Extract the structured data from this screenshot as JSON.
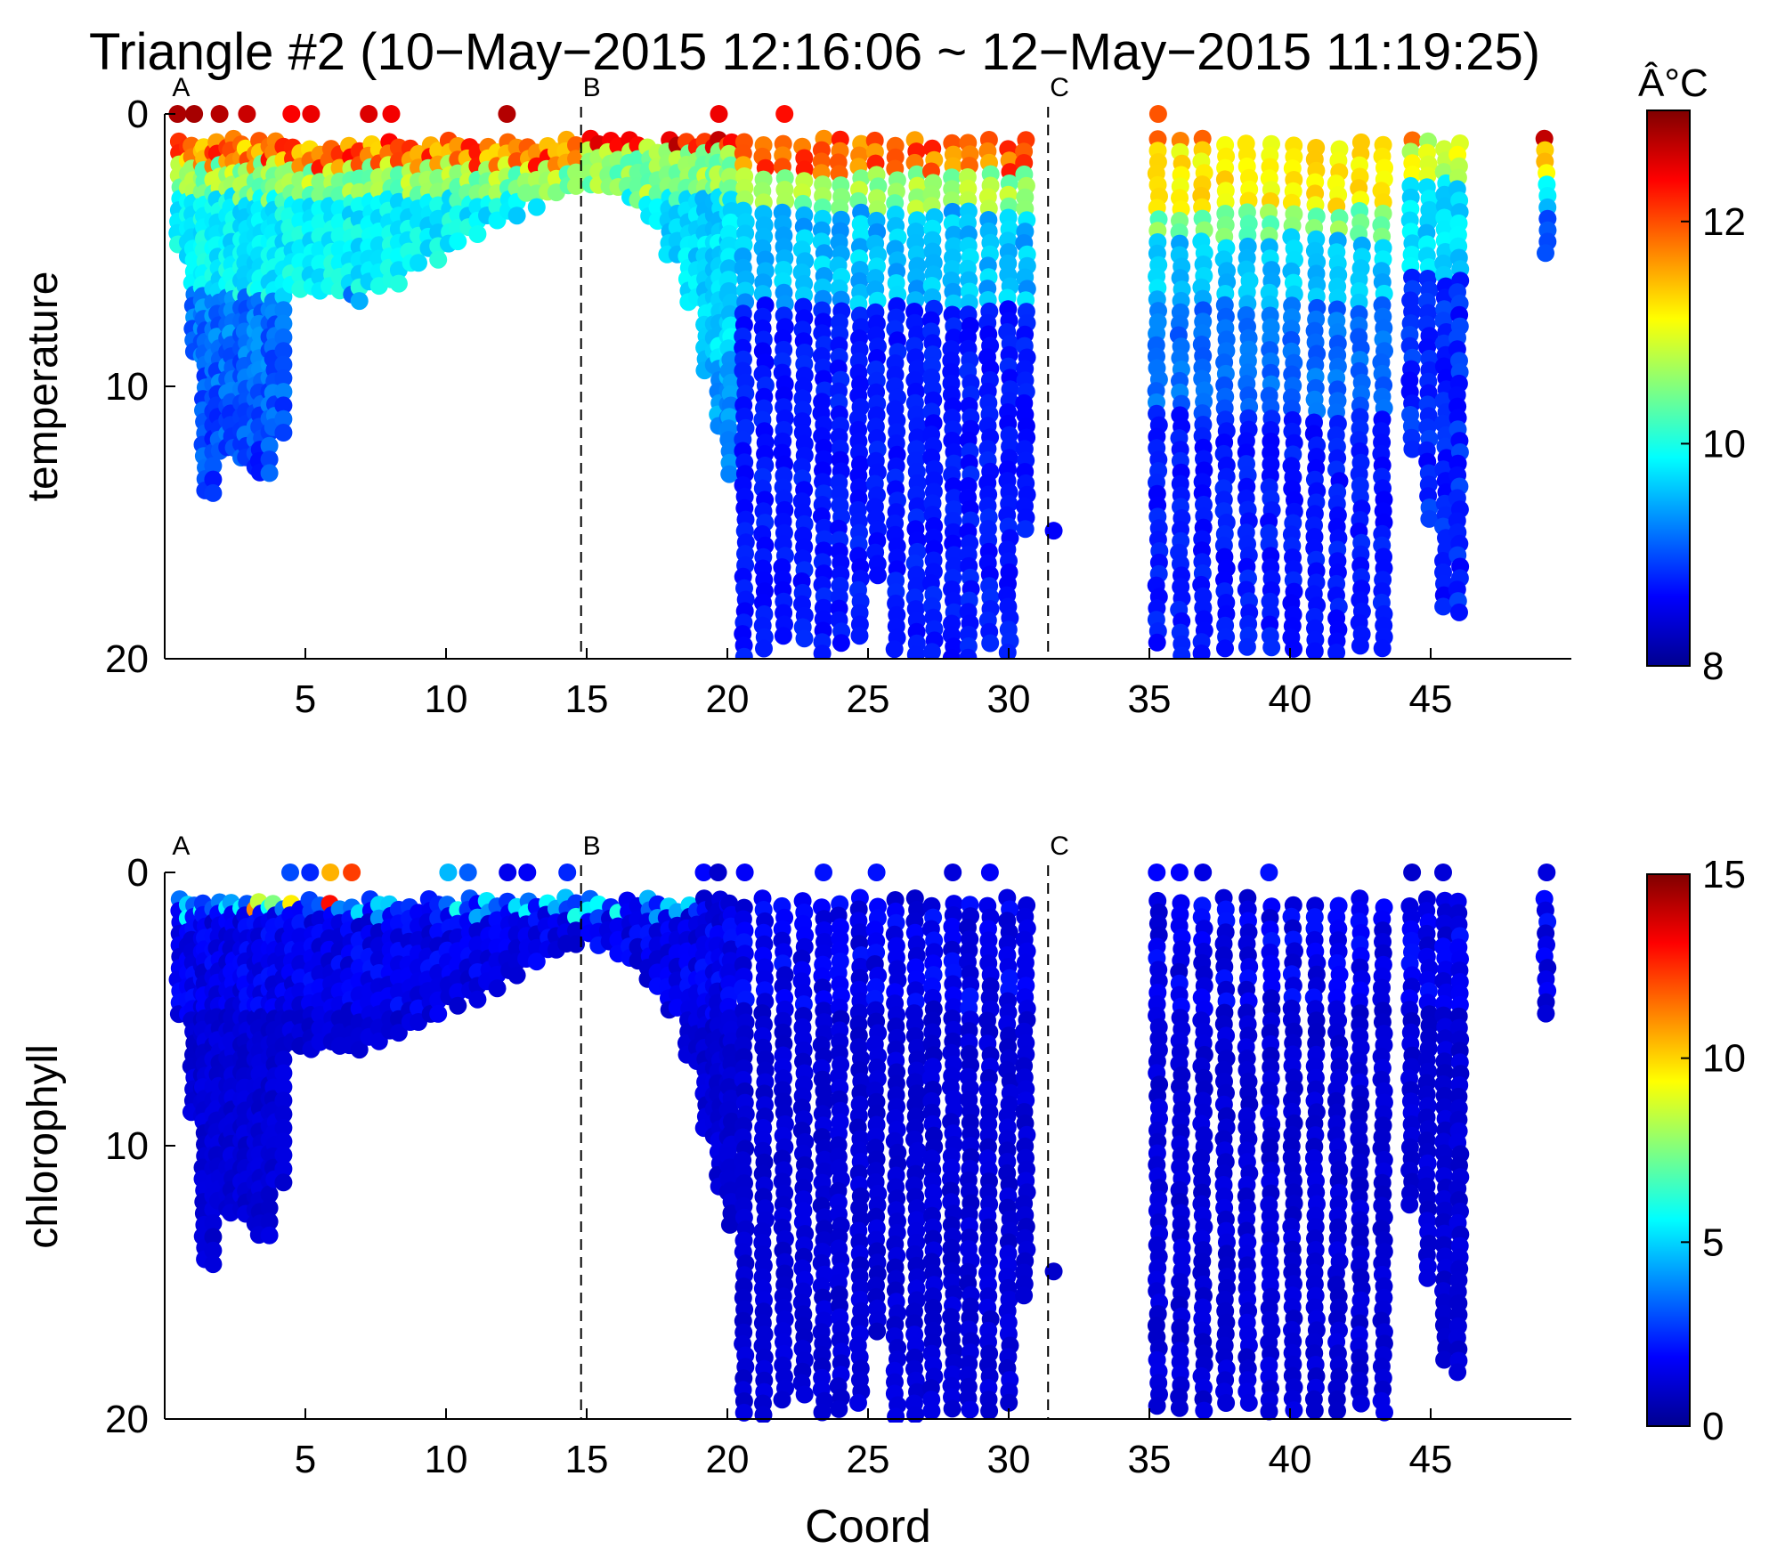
{
  "title": "Triangle #2 (10−May−2015 12:16:06 ~ 12−May−2015 11:19:25)",
  "xlabel": "Coord",
  "colormap": "jet",
  "colormap_stops": [
    "#00008f",
    "#0000ff",
    "#0080ff",
    "#00ffff",
    "#80ff80",
    "#ffff00",
    "#ff8000",
    "#ff0000",
    "#800000"
  ],
  "chart_data": [
    {
      "type": "scatter",
      "name": "temperature",
      "ylabel": "temperature",
      "xlim": [
        0,
        50
      ],
      "ylim": [
        20,
        0
      ],
      "y_reversed": true,
      "xticks": [
        5,
        10,
        15,
        20,
        25,
        30,
        35,
        40,
        45
      ],
      "yticks": [
        0,
        10,
        20
      ],
      "colorbar": {
        "label": "Â°C",
        "range": [
          8,
          13
        ],
        "ticks": [
          8,
          10,
          12
        ]
      },
      "stations": [
        {
          "label": "A",
          "x": 0.2,
          "line": false
        },
        {
          "label": "B",
          "x": 14.8,
          "line": true
        },
        {
          "label": "C",
          "x": 31.4,
          "line": true
        }
      ],
      "profiles": [
        {
          "x": 0.5,
          "max_depth": 5.2
        },
        {
          "x": 1.0,
          "max_depth": 9.0
        },
        {
          "x": 1.4,
          "max_depth": 14.2
        },
        {
          "x": 1.9,
          "max_depth": 12.4
        },
        {
          "x": 2.4,
          "max_depth": 12.6
        },
        {
          "x": 2.9,
          "max_depth": 12.9
        },
        {
          "x": 3.4,
          "max_depth": 13.3
        },
        {
          "x": 3.9,
          "max_depth": 11.5
        },
        {
          "x": 4.5,
          "max_depth": 6.6
        },
        {
          "x": 5.2,
          "max_depth": 6.5
        },
        {
          "x": 5.9,
          "max_depth": 6.4
        },
        {
          "x": 6.6,
          "max_depth": 6.7
        },
        {
          "x": 7.3,
          "max_depth": 6.4
        },
        {
          "x": 8.0,
          "max_depth": 6.1
        },
        {
          "x": 8.7,
          "max_depth": 5.7
        },
        {
          "x": 9.4,
          "max_depth": 5.3
        },
        {
          "x": 10.1,
          "max_depth": 4.9
        },
        {
          "x": 10.8,
          "max_depth": 4.5
        },
        {
          "x": 11.5,
          "max_depth": 4.1
        },
        {
          "x": 12.2,
          "max_depth": 3.7
        },
        {
          "x": 12.9,
          "max_depth": 3.3
        },
        {
          "x": 13.6,
          "max_depth": 3.0
        },
        {
          "x": 14.3,
          "max_depth": 2.7
        },
        {
          "x": 15.1,
          "max_depth": 2.6
        },
        {
          "x": 15.8,
          "max_depth": 2.9
        },
        {
          "x": 16.5,
          "max_depth": 3.3
        },
        {
          "x": 17.2,
          "max_depth": 4.0
        },
        {
          "x": 17.9,
          "max_depth": 5.2
        },
        {
          "x": 18.6,
          "max_depth": 7.0
        },
        {
          "x": 19.2,
          "max_depth": 9.5
        },
        {
          "x": 19.7,
          "max_depth": 11.5
        },
        {
          "x": 20.1,
          "max_depth": 13.3
        },
        {
          "x": 20.6,
          "max_depth": 20.0
        },
        {
          "x": 21.3,
          "max_depth": 20.0
        },
        {
          "x": 22.0,
          "max_depth": 19.5
        },
        {
          "x": 22.7,
          "max_depth": 19.5
        },
        {
          "x": 23.4,
          "max_depth": 20.0
        },
        {
          "x": 24.0,
          "max_depth": 19.8
        },
        {
          "x": 24.7,
          "max_depth": 19.5
        },
        {
          "x": 25.3,
          "max_depth": 17.0
        },
        {
          "x": 26.0,
          "max_depth": 20.0
        },
        {
          "x": 26.7,
          "max_depth": 20.0
        },
        {
          "x": 27.3,
          "max_depth": 19.8
        },
        {
          "x": 28.0,
          "max_depth": 20.0
        },
        {
          "x": 28.6,
          "max_depth": 20.0
        },
        {
          "x": 29.3,
          "max_depth": 19.8
        },
        {
          "x": 30.0,
          "max_depth": 19.8
        },
        {
          "x": 30.6,
          "max_depth": 15.5
        },
        {
          "x": 35.3,
          "max_depth": 19.8
        },
        {
          "x": 36.1,
          "max_depth": 20.0
        },
        {
          "x": 36.9,
          "max_depth": 20.0
        },
        {
          "x": 37.7,
          "max_depth": 19.8
        },
        {
          "x": 38.5,
          "max_depth": 19.8
        },
        {
          "x": 39.3,
          "max_depth": 19.8
        },
        {
          "x": 40.1,
          "max_depth": 19.8
        },
        {
          "x": 40.9,
          "max_depth": 19.8
        },
        {
          "x": 41.7,
          "max_depth": 19.8
        },
        {
          "x": 42.5,
          "max_depth": 19.8
        },
        {
          "x": 43.3,
          "max_depth": 19.8
        },
        {
          "x": 44.3,
          "max_depth": 12.5
        },
        {
          "x": 44.9,
          "max_depth": 15.0
        },
        {
          "x": 45.5,
          "max_depth": 18.2
        },
        {
          "x": 46.0,
          "max_depth": 18.4
        },
        {
          "x": 49.1,
          "max_depth": 5.5
        }
      ],
      "single_points": [
        {
          "x": 31.6,
          "y": 15.3,
          "value": 8.6
        }
      ]
    },
    {
      "type": "scatter",
      "name": "chlorophyll",
      "ylabel": "chlorophyll",
      "xlabel": "Coord",
      "xlim": [
        0,
        50
      ],
      "ylim": [
        20,
        0
      ],
      "y_reversed": true,
      "xticks": [
        5,
        10,
        15,
        20,
        25,
        30,
        35,
        40,
        45
      ],
      "yticks": [
        0,
        10,
        20
      ],
      "colorbar": {
        "label": "",
        "range": [
          0,
          15
        ],
        "ticks": [
          0,
          5,
          10,
          15
        ]
      },
      "stations": [
        {
          "label": "A",
          "x": 0.2,
          "line": false
        },
        {
          "label": "B",
          "x": 14.8,
          "line": true
        },
        {
          "label": "C",
          "x": 31.4,
          "line": true
        }
      ],
      "single_points": [
        {
          "x": 31.6,
          "y": 14.6,
          "value": 1.0
        }
      ]
    }
  ]
}
